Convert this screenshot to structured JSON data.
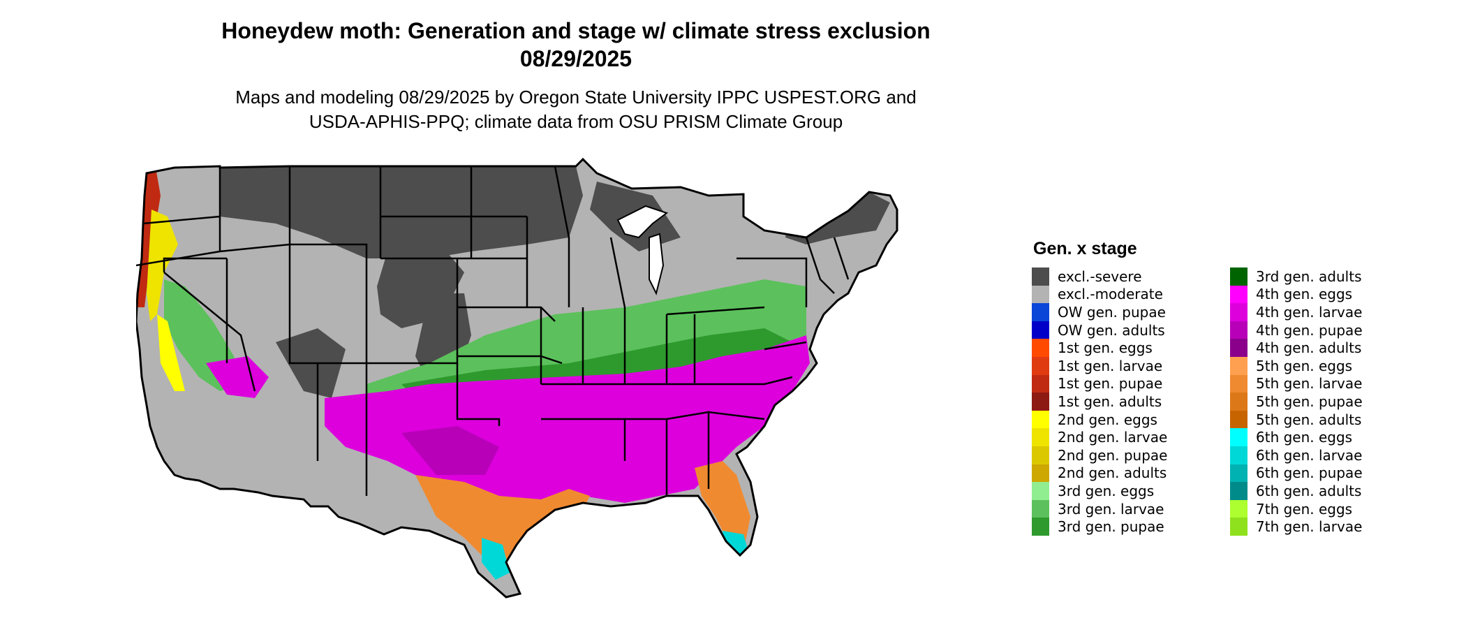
{
  "title_line1": "Honeydew moth: Generation and stage w/ climate stress exclusion",
  "title_line2": "08/29/2025",
  "subtitle_line1": "Maps and modeling 08/29/2025 by Oregon State University IPPC USPEST.ORG and",
  "subtitle_line2": "USDA-APHIS-PPQ; climate data from OSU PRISM Climate Group",
  "legend": {
    "title": "Gen. x stage",
    "items": [
      {
        "label": "excl.-severe",
        "color": "#4d4d4d"
      },
      {
        "label": "excl.-moderate",
        "color": "#b3b3b3"
      },
      {
        "label": "OW gen. pupae",
        "color": "#0a46d8"
      },
      {
        "label": "OW gen. adults",
        "color": "#0000c8"
      },
      {
        "label": "1st gen. eggs",
        "color": "#ff4a00"
      },
      {
        "label": "1st gen. larvae",
        "color": "#e03a10"
      },
      {
        "label": "1st gen. pupae",
        "color": "#c02a12"
      },
      {
        "label": "1st gen. adults",
        "color": "#8e1a14"
      },
      {
        "label": "2nd gen. eggs",
        "color": "#ffff00"
      },
      {
        "label": "2nd gen. larvae",
        "color": "#eee400"
      },
      {
        "label": "2nd gen. pupae",
        "color": "#dcc800"
      },
      {
        "label": "2nd gen. adults",
        "color": "#cda800"
      },
      {
        "label": "3rd gen. eggs",
        "color": "#90ee90"
      },
      {
        "label": "3rd gen. larvae",
        "color": "#5cc15c"
      },
      {
        "label": "3rd gen. pupae",
        "color": "#2e9a2e"
      },
      {
        "label": "3rd gen. adults",
        "color": "#006400"
      },
      {
        "label": "4th gen. eggs",
        "color": "#ff00ff"
      },
      {
        "label": "4th gen. larvae",
        "color": "#dd00dd"
      },
      {
        "label": "4th gen. pupae",
        "color": "#b800b8"
      },
      {
        "label": "4th gen. adults",
        "color": "#8b008b"
      },
      {
        "label": "5th gen. eggs",
        "color": "#ffa050"
      },
      {
        "label": "5th gen. larvae",
        "color": "#f08a30"
      },
      {
        "label": "5th gen. pupae",
        "color": "#dc7818"
      },
      {
        "label": "5th gen. adults",
        "color": "#c86400"
      },
      {
        "label": "6th gen. eggs",
        "color": "#00ffff"
      },
      {
        "label": "6th gen. larvae",
        "color": "#00d8d8"
      },
      {
        "label": "6th gen. pupae",
        "color": "#00b2b2"
      },
      {
        "label": "6th gen. adults",
        "color": "#008b8b"
      },
      {
        "label": "7th gen. eggs",
        "color": "#adff2f"
      },
      {
        "label": "7th gen. larvae",
        "color": "#8fe11e"
      }
    ]
  }
}
